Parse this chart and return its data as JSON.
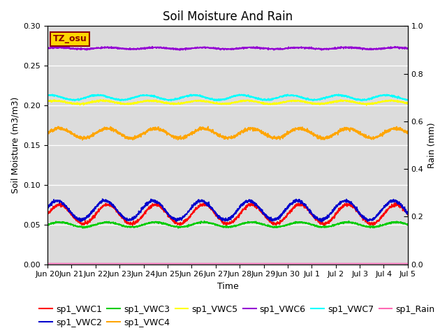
{
  "title": "Soil Moisture And Rain",
  "xlabel": "Time",
  "ylabel_left": "Soil Moisture (m3/m3)",
  "ylabel_right": "Rain (mm)",
  "ylim_left": [
    0.0,
    0.3
  ],
  "ylim_right": [
    0.0,
    1.0
  ],
  "yticks_left": [
    0.0,
    0.05,
    0.1,
    0.15,
    0.2,
    0.25,
    0.3
  ],
  "yticks_right": [
    0.0,
    0.2,
    0.4,
    0.6,
    0.8,
    1.0
  ],
  "station_label": "TZ_osu",
  "station_label_color": "#8B0000",
  "station_label_bg": "#FFD700",
  "bg_color": "#DCDCDC",
  "series": {
    "sp1_VWC1": {
      "color": "#FF0000",
      "base": 0.063,
      "amp": 0.012,
      "period": 2.0,
      "phase": 0.0,
      "noise": 0.001
    },
    "sp1_VWC2": {
      "color": "#0000CD",
      "base": 0.068,
      "amp": 0.012,
      "period": 2.0,
      "phase": 0.05,
      "noise": 0.001
    },
    "sp1_VWC3": {
      "color": "#00CC00",
      "base": 0.05,
      "amp": 0.003,
      "period": 2.0,
      "phase": 0.0,
      "noise": 0.0005
    },
    "sp1_VWC4": {
      "color": "#FFA500",
      "base": 0.165,
      "amp": 0.006,
      "period": 2.0,
      "phase": 0.0,
      "noise": 0.001
    },
    "sp1_VWC5": {
      "color": "#FFFF00",
      "base": 0.204,
      "amp": 0.002,
      "period": 2.0,
      "phase": 0.1,
      "noise": 0.0005
    },
    "sp1_VWC6": {
      "color": "#9400D3",
      "base": 0.272,
      "amp": 0.001,
      "period": 2.0,
      "phase": 0.0,
      "noise": 0.0005
    },
    "sp1_VWC7": {
      "color": "#00FFFF",
      "base": 0.21,
      "amp": 0.003,
      "period": 2.0,
      "phase": 0.2,
      "noise": 0.0005
    },
    "sp1_Rain": {
      "color": "#FF69B4",
      "base": 0.001,
      "amp": 0.0,
      "period": 1.0,
      "phase": 0.0,
      "noise": 0.0
    }
  },
  "legend_order": [
    "sp1_VWC1",
    "sp1_VWC2",
    "sp1_VWC3",
    "sp1_VWC4",
    "sp1_VWC5",
    "sp1_VWC6",
    "sp1_VWC7",
    "sp1_Rain"
  ],
  "x_tick_labels": [
    "Jun 20",
    "Jun 21",
    "Jun 22",
    "Jun 23",
    "Jun 24",
    "Jun 25",
    "Jun 26",
    "Jun 27",
    "Jun 28",
    "Jun 29",
    "Jun 30",
    "Jul 1",
    "Jul 2",
    "Jul 3",
    "Jul 4",
    "Jul 5"
  ],
  "title_fontsize": 12,
  "label_fontsize": 9,
  "tick_fontsize": 8,
  "legend_fontsize": 9,
  "linewidth": 1.2,
  "figsize": [
    6.4,
    4.8
  ],
  "dpi": 100
}
